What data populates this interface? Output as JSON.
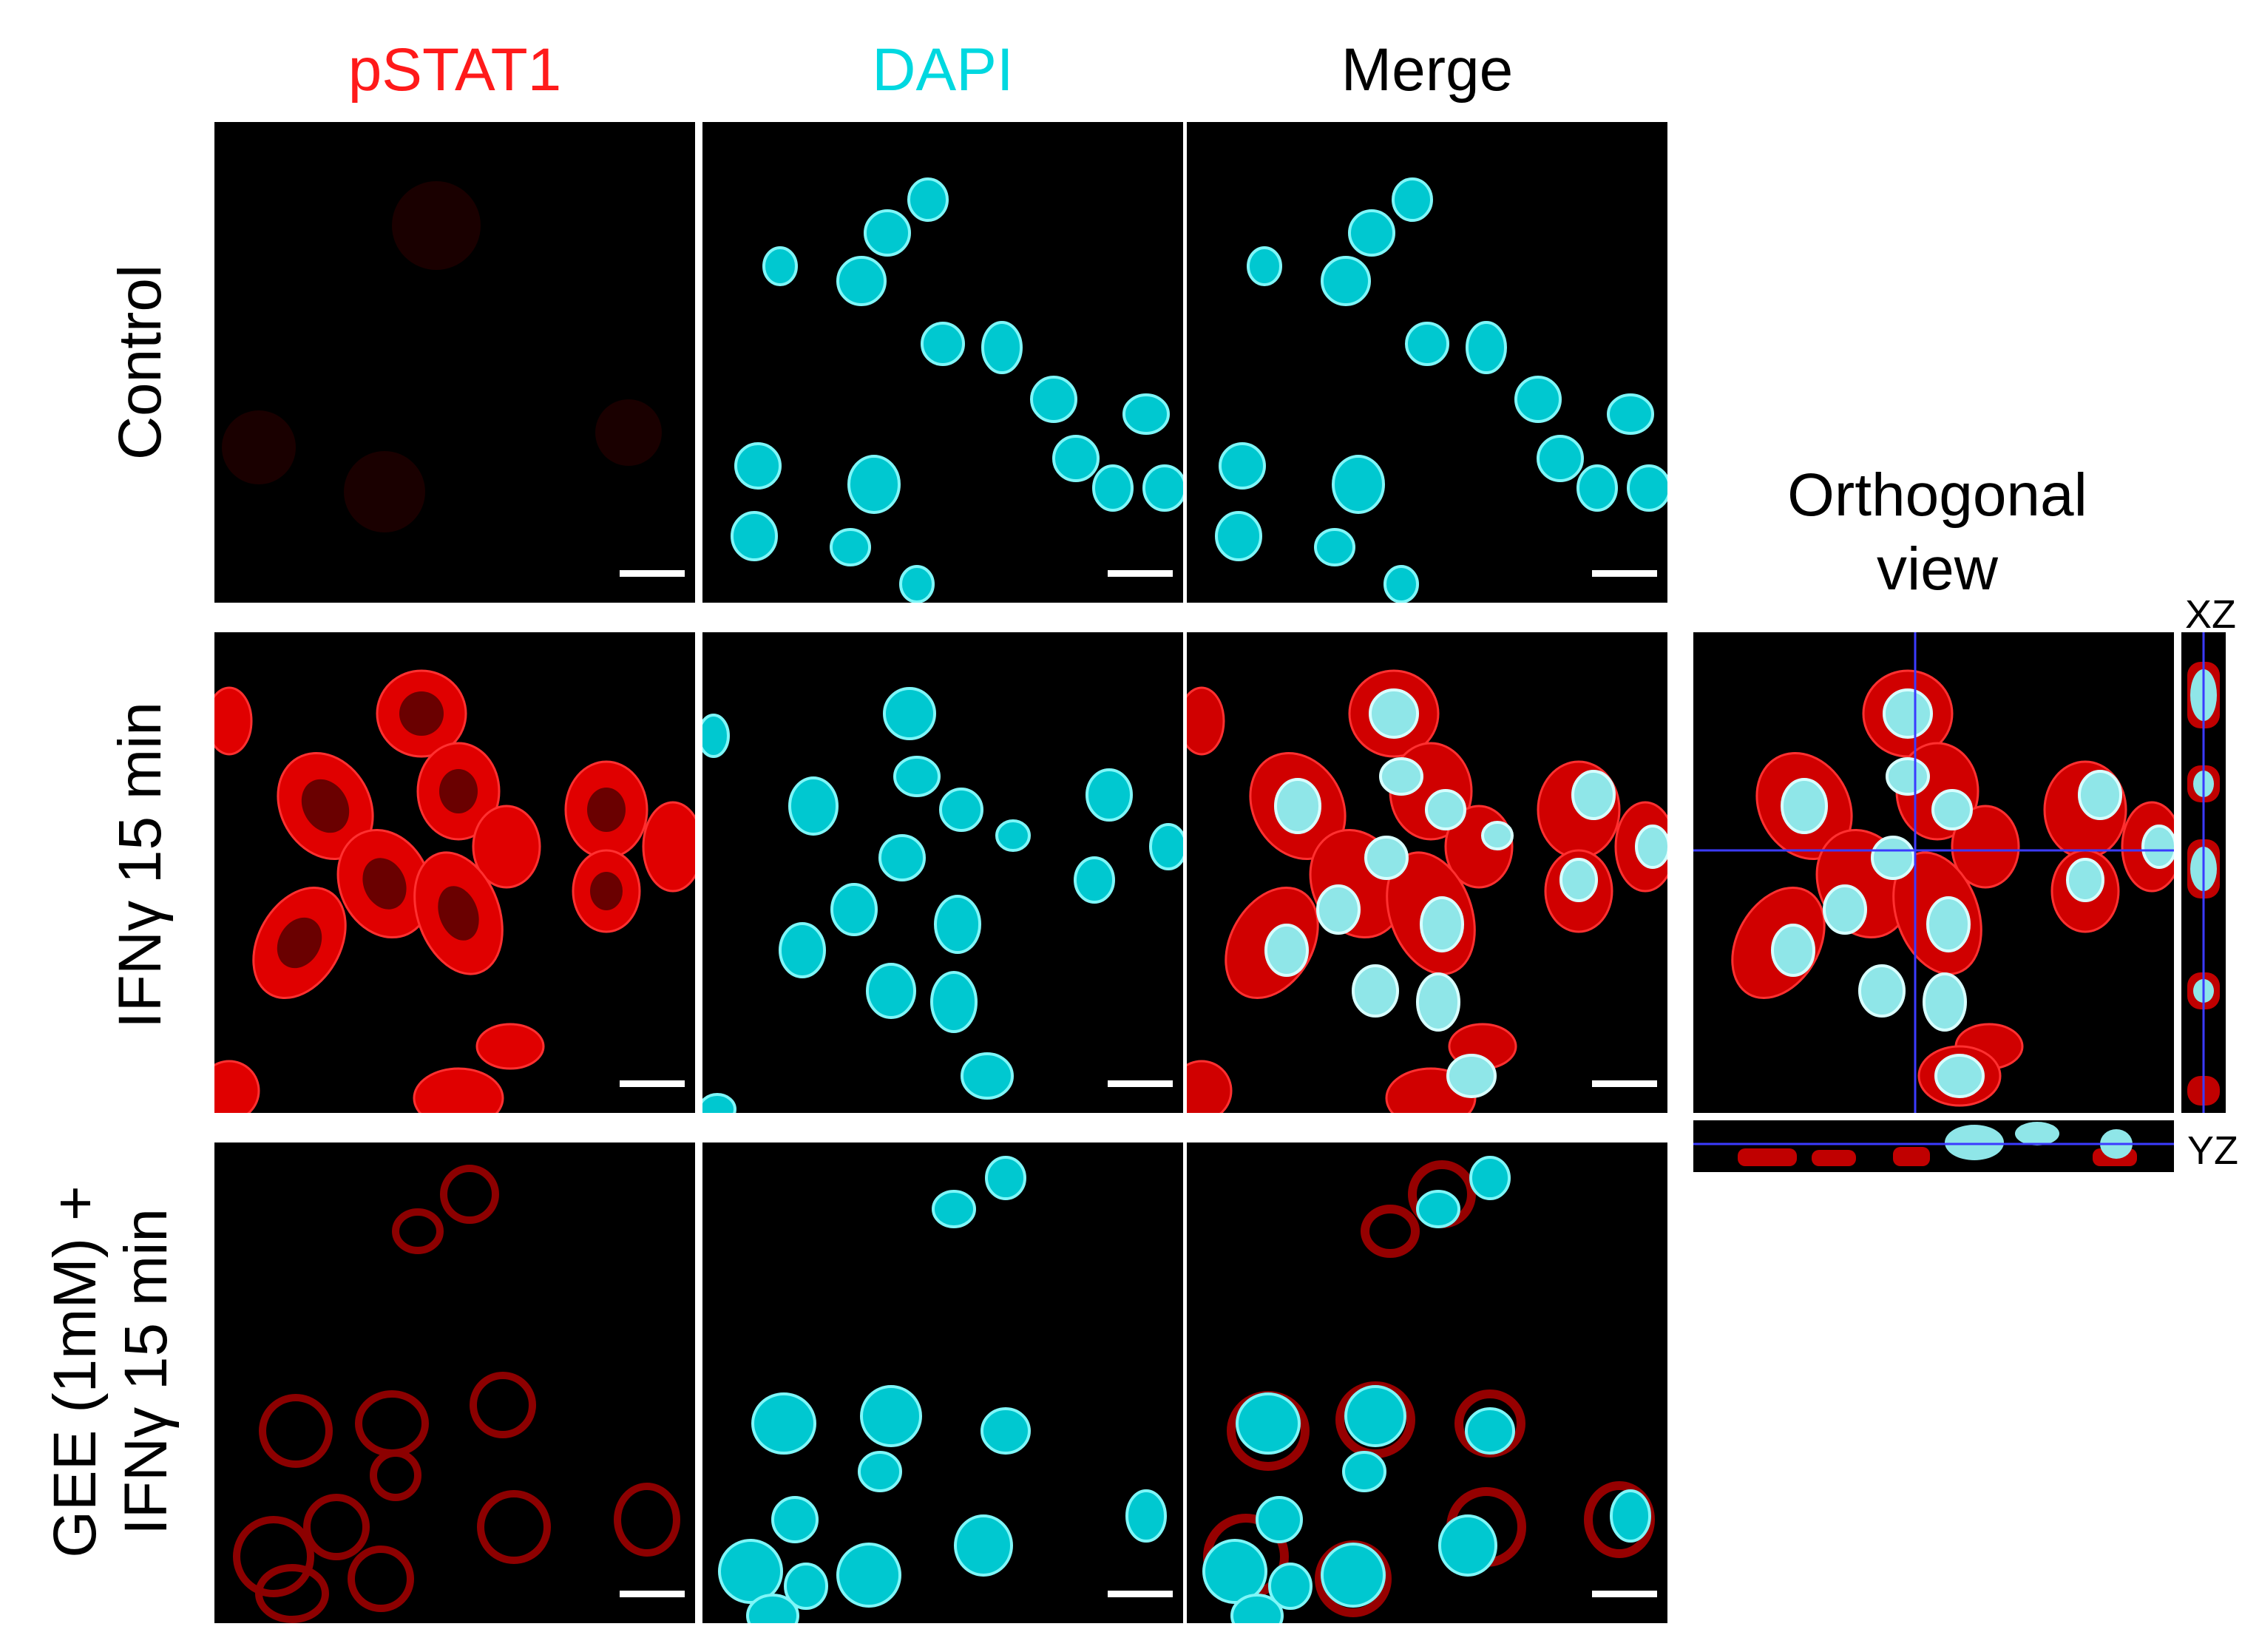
{
  "columns": {
    "red": "pSTAT1",
    "cyan": "DAPI",
    "merge": "Merge"
  },
  "rows": {
    "control": "Control",
    "ifng": "IFNγ 15 min",
    "gee_line1": "GEE (1mM) +",
    "gee_line2": "IFNγ 15 min"
  },
  "orthogonal": {
    "title_line1": "Orthogonal",
    "title_line2": "view",
    "xz": "XZ",
    "yz": "YZ"
  },
  "colors": {
    "red_channel": "#ff1a1a",
    "cyan_channel": "#00e5e5",
    "background": "#000000",
    "crosshair": "#3b3bff"
  }
}
